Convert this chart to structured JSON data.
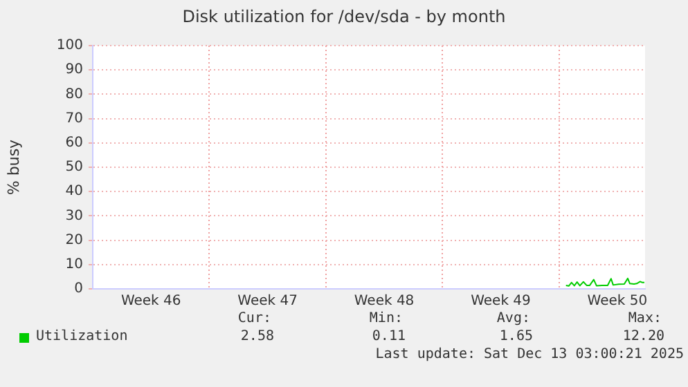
{
  "chart_data": {
    "type": "line",
    "title": "Disk utilization for /dev/sda - by month",
    "ylabel": "% busy",
    "x": [
      "2025-12-08T10:00",
      "2025-12-08T14:00",
      "2025-12-08T18:00",
      "2025-12-08T22:00",
      "2025-12-09T02:00",
      "2025-12-09T06:00",
      "2025-12-09T11:00",
      "2025-12-09T16:00",
      "2025-12-09T20:00",
      "2025-12-10T02:00",
      "2025-12-10T06:00",
      "2025-12-10T14:00",
      "2025-12-10T22:00",
      "2025-12-11T03:00",
      "2025-12-11T06:00",
      "2025-12-11T14:00",
      "2025-12-11T22:00",
      "2025-12-12T03:00",
      "2025-12-12T06:00",
      "2025-12-12T12:00",
      "2025-12-12T16:00",
      "2025-12-12T21:00",
      "2025-12-13T00:00",
      "2025-12-13T03:00"
    ],
    "series": [
      {
        "name": "Utilization",
        "color": "#00cc00",
        "values": [
          1.4,
          1.2,
          2.6,
          1.3,
          2.8,
          1.3,
          2.9,
          1.4,
          1.4,
          3.8,
          1.3,
          1.4,
          1.4,
          4.2,
          1.6,
          1.9,
          2.0,
          4.3,
          2.2,
          2.0,
          2.2,
          3.0,
          2.6,
          2.6
        ]
      }
    ],
    "xlim": [
      "2025-11-10",
      "2025-12-13T04:00"
    ],
    "xticks": [
      {
        "value": "2025-11-13T12:00",
        "label": "Week 46"
      },
      {
        "value": "2025-11-17",
        "label": null
      },
      {
        "value": "2025-11-20T12:00",
        "label": "Week 47"
      },
      {
        "value": "2025-11-24",
        "label": null
      },
      {
        "value": "2025-11-27T12:00",
        "label": "Week 48"
      },
      {
        "value": "2025-12-01",
        "label": null
      },
      {
        "value": "2025-12-04T12:00",
        "label": "Week 49"
      },
      {
        "value": "2025-12-08",
        "label": null
      },
      {
        "value": "2025-12-11T12:00",
        "label": "Week 50"
      }
    ],
    "ylim": [
      0,
      100
    ],
    "yticks": [
      0,
      10,
      20,
      30,
      40,
      50,
      60,
      70,
      80,
      90,
      100
    ],
    "grid": true,
    "legend": "bottom",
    "marker": "none",
    "line_style": "solid",
    "annotations": [
      "Cur:",
      "Min:",
      "Avg:",
      "Max:",
      "2.58",
      "0.11",
      "1.65",
      "12.20",
      "Last update: Sat Dec 13 03:00:21 2025"
    ]
  }
}
